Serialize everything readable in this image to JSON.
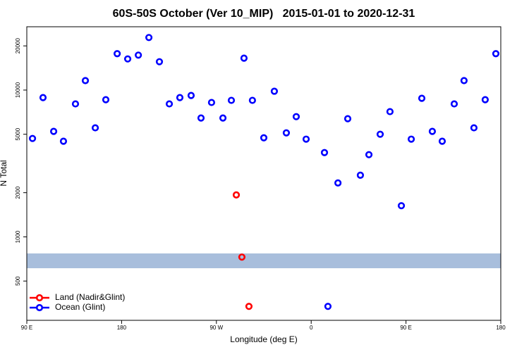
{
  "chart_data": {
    "type": "scatter",
    "title": "60S-50S October (Ver 10_MIP)   2015-01-01 to 2020-12-31",
    "x_label": "Longitude (deg E)",
    "y_label": "N Total",
    "xlim": [
      90,
      540
    ],
    "xticks": [
      {
        "value": 90,
        "label": "90 E"
      },
      180,
      {
        "value": 270,
        "label": "90 W"
      },
      {
        "value": 360,
        "label": "0"
      },
      {
        "value": 450,
        "label": "90 E"
      },
      {
        "value": 540,
        "label": "180"
      }
    ],
    "ylim": [
      270,
      27000
    ],
    "log_y": true,
    "yticks": [
      500,
      1000,
      2000,
      5000,
      10000,
      20000
    ],
    "legend_position": "bottom-left",
    "series": [
      {
        "name": "Land (Nadir&Glint)",
        "color": "#ff0000",
        "x": [
          288.9,
          294.2,
          300.9
        ],
        "values": [
          1930,
          728,
          336
        ]
      },
      {
        "name": "Ocean (Glint)",
        "color": "#0000ff",
        "x": [
          95.4,
          105.4,
          115.5,
          124.8,
          136.2,
          145.6,
          155.0,
          165.0,
          175.8,
          185.8,
          195.9,
          205.9,
          215.9,
          225.3,
          235.3,
          246.0,
          255.4,
          265.4,
          276.2,
          284.2,
          296.2,
          304.2,
          315.0,
          325.0,
          336.4,
          345.8,
          355.2,
          372.6,
          385.4,
          394.7,
          406.7,
          414.8,
          425.5,
          434.8,
          445.6,
          455.0,
          465.0,
          475.0,
          484.4,
          495.8,
          505.1,
          514.5,
          525.2,
          535.3,
          375.9
        ],
        "values": [
          4680,
          8890,
          5230,
          4480,
          8050,
          11600,
          5530,
          8600,
          17700,
          16300,
          17300,
          22800,
          15600,
          8050,
          8890,
          9190,
          6450,
          8230,
          6450,
          8510,
          16500,
          8510,
          4730,
          9820,
          5110,
          6590,
          4630,
          3750,
          2330,
          6380,
          2630,
          3630,
          5000,
          7130,
          1630,
          4630,
          8790,
          5230,
          4480,
          8050,
          11600,
          5530,
          8600,
          17700,
          336
        ]
      }
    ]
  }
}
